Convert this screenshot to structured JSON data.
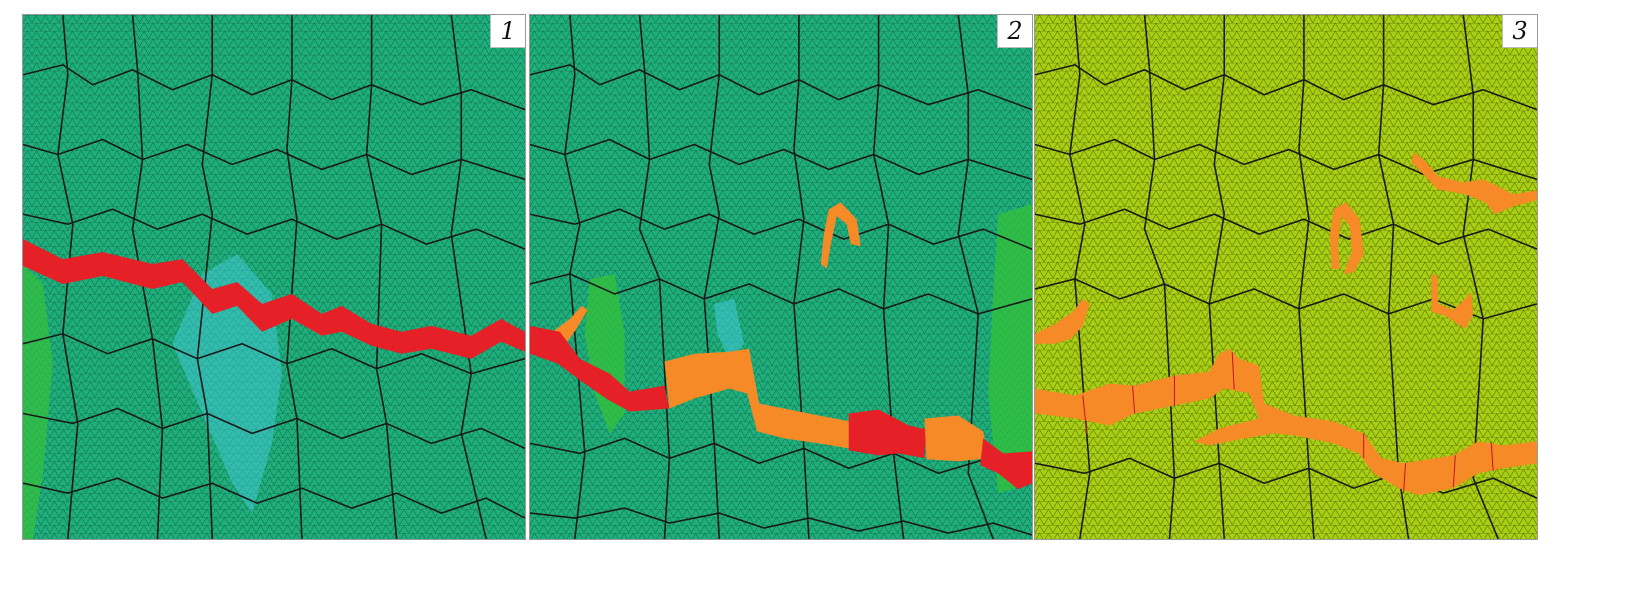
{
  "panels": [
    {
      "label": "1",
      "mesh_color": "#1faf7d",
      "crack_color": "#e52026"
    },
    {
      "label": "2",
      "mesh_color": "#1faf7d",
      "crack_colors": [
        "#e52026",
        "#f58a26"
      ]
    },
    {
      "label": "3",
      "mesh_color": "#a9cf12",
      "crack_color": "#f58a26"
    }
  ]
}
